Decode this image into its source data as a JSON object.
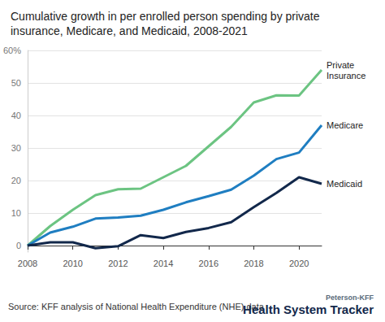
{
  "chart_data": {
    "type": "line",
    "title": "Cumulative growth in per enrolled person spending by private insurance, Medicare, and Medicaid, 2008-2021",
    "source": "Source: KFF analysis of National Health Expenditure (NHE) data",
    "annotations": [
      "Peterson-KFF",
      "Health System Tracker"
    ],
    "x": [
      2008,
      2009,
      2010,
      2011,
      2012,
      2013,
      2014,
      2015,
      2016,
      2017,
      2018,
      2019,
      2020,
      2021
    ],
    "series": [
      {
        "name": "Private Insurance",
        "color": "#6cc482",
        "values": [
          0,
          6,
          11,
          15.5,
          17.3,
          17.5,
          21,
          24.5,
          30.5,
          36.5,
          44,
          46.2,
          46.1,
          54
        ]
      },
      {
        "name": "Medicare",
        "color": "#1f7ec1",
        "values": [
          0,
          4,
          5.8,
          8.3,
          8.6,
          9.2,
          11,
          13.3,
          15.2,
          17.2,
          21.5,
          26.6,
          28.6,
          37
        ]
      },
      {
        "name": "Medicaid",
        "color": "#12284b",
        "values": [
          0,
          1,
          1,
          -0.8,
          -0.2,
          3.2,
          2.3,
          4.2,
          5.4,
          7.2,
          11.8,
          16.2,
          21,
          19
        ]
      }
    ],
    "xlim": [
      2008,
      2021
    ],
    "xticks": [
      2008,
      2010,
      2012,
      2014,
      2016,
      2018,
      2020
    ],
    "ylim": [
      -2,
      60
    ],
    "yticks": [
      0,
      10,
      20,
      30,
      40,
      50,
      {
        "value": 60,
        "label": "60%"
      }
    ],
    "grid": true
  }
}
